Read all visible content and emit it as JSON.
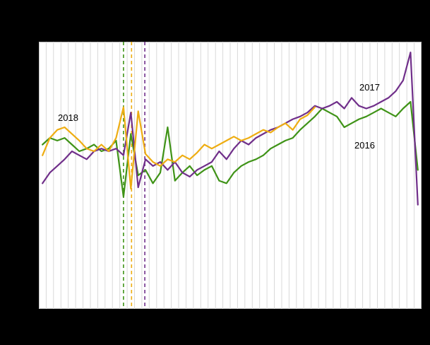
{
  "canvas": {
    "background_color": "#000000",
    "plot_background_color": "#ffffff",
    "grid_color": "#d9d9d9",
    "plot_border_color": "#b3b3b3"
  },
  "chart_data": {
    "type": "line",
    "title": "",
    "xlabel": "",
    "ylabel": "",
    "x_unit": "week",
    "x_count": 52,
    "ylim": [
      0,
      100
    ],
    "grid": "vertical-per-week",
    "legend_position": "inline-annotations",
    "series": [
      {
        "name": "2016",
        "color": "#3f9317",
        "values": [
          61.5,
          64,
          63,
          64,
          61.5,
          59,
          60,
          61.5,
          59,
          60,
          63,
          42,
          65.5,
          50,
          52,
          47,
          51,
          68,
          48,
          51,
          53.5,
          50,
          52,
          53.5,
          48,
          47,
          51,
          53.5,
          55,
          56,
          57.5,
          60,
          61.5,
          63,
          64,
          67,
          69.5,
          72,
          75,
          73.5,
          72,
          68,
          69.5,
          71,
          72,
          73.5,
          75,
          73.5,
          72,
          75,
          77.5,
          52
        ]
      },
      {
        "name": "2017",
        "color": "#702f8a",
        "values": [
          47,
          51,
          53.5,
          56,
          59,
          57.5,
          56,
          59,
          60,
          59,
          60,
          57.5,
          73.5,
          45.5,
          56,
          53.5,
          55,
          52,
          55,
          51,
          49.5,
          52,
          53.5,
          55,
          59,
          56,
          60,
          63,
          61.5,
          64,
          65.5,
          67,
          68,
          69.5,
          71,
          72,
          73.5,
          76,
          75,
          76,
          77.5,
          75,
          79,
          76,
          75,
          76,
          77.5,
          79,
          81.5,
          85.5,
          96,
          39
        ]
      },
      {
        "name": "2018",
        "color": "#eead12",
        "values": [
          57.5,
          64,
          67,
          68,
          65.5,
          63,
          60,
          59,
          61.5,
          59,
          64,
          75.5,
          45,
          74,
          58,
          55,
          53.5,
          56,
          55,
          57.5,
          56,
          58.5,
          61.5,
          60,
          61.5,
          63,
          64.5,
          63,
          64,
          65.5,
          67,
          66,
          68,
          69.5,
          67,
          71,
          72.5,
          75.5
        ]
      }
    ],
    "event_lines": [
      {
        "week": 12.0,
        "color": "#3f9317",
        "style": "dashed"
      },
      {
        "week": 13.1,
        "color": "#eead12",
        "style": "dashed"
      },
      {
        "week": 14.9,
        "color": "#702f8a",
        "style": "dashed"
      }
    ],
    "annotations": [
      {
        "text": "2018"
      },
      {
        "text": "2017"
      },
      {
        "text": "2016"
      }
    ]
  }
}
